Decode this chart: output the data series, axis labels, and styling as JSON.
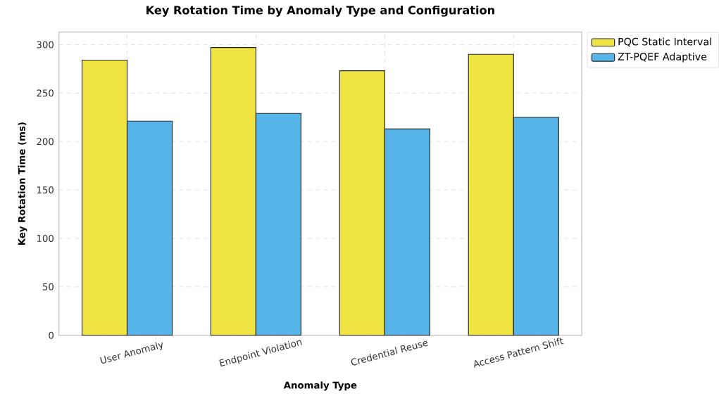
{
  "chart_data": {
    "type": "bar",
    "title": "Key Rotation Time by Anomaly Type and Configuration",
    "xlabel": "Anomaly Type",
    "ylabel": "Key Rotation Time (ms)",
    "categories": [
      "User Anomaly",
      "Endpoint Violation",
      "Credential Reuse",
      "Access Pattern Shift"
    ],
    "series": [
      {
        "name": "PQC Static Interval",
        "color": "#f0e442",
        "values": [
          284,
          297,
          273,
          290
        ]
      },
      {
        "name": "ZT-PQEF Adaptive",
        "color": "#56b4e9",
        "values": [
          221,
          229,
          213,
          225
        ]
      }
    ],
    "ylim": [
      0,
      313
    ],
    "yticks": [
      0,
      50,
      100,
      150,
      200,
      250,
      300
    ],
    "grid": true,
    "legend": "top right"
  }
}
